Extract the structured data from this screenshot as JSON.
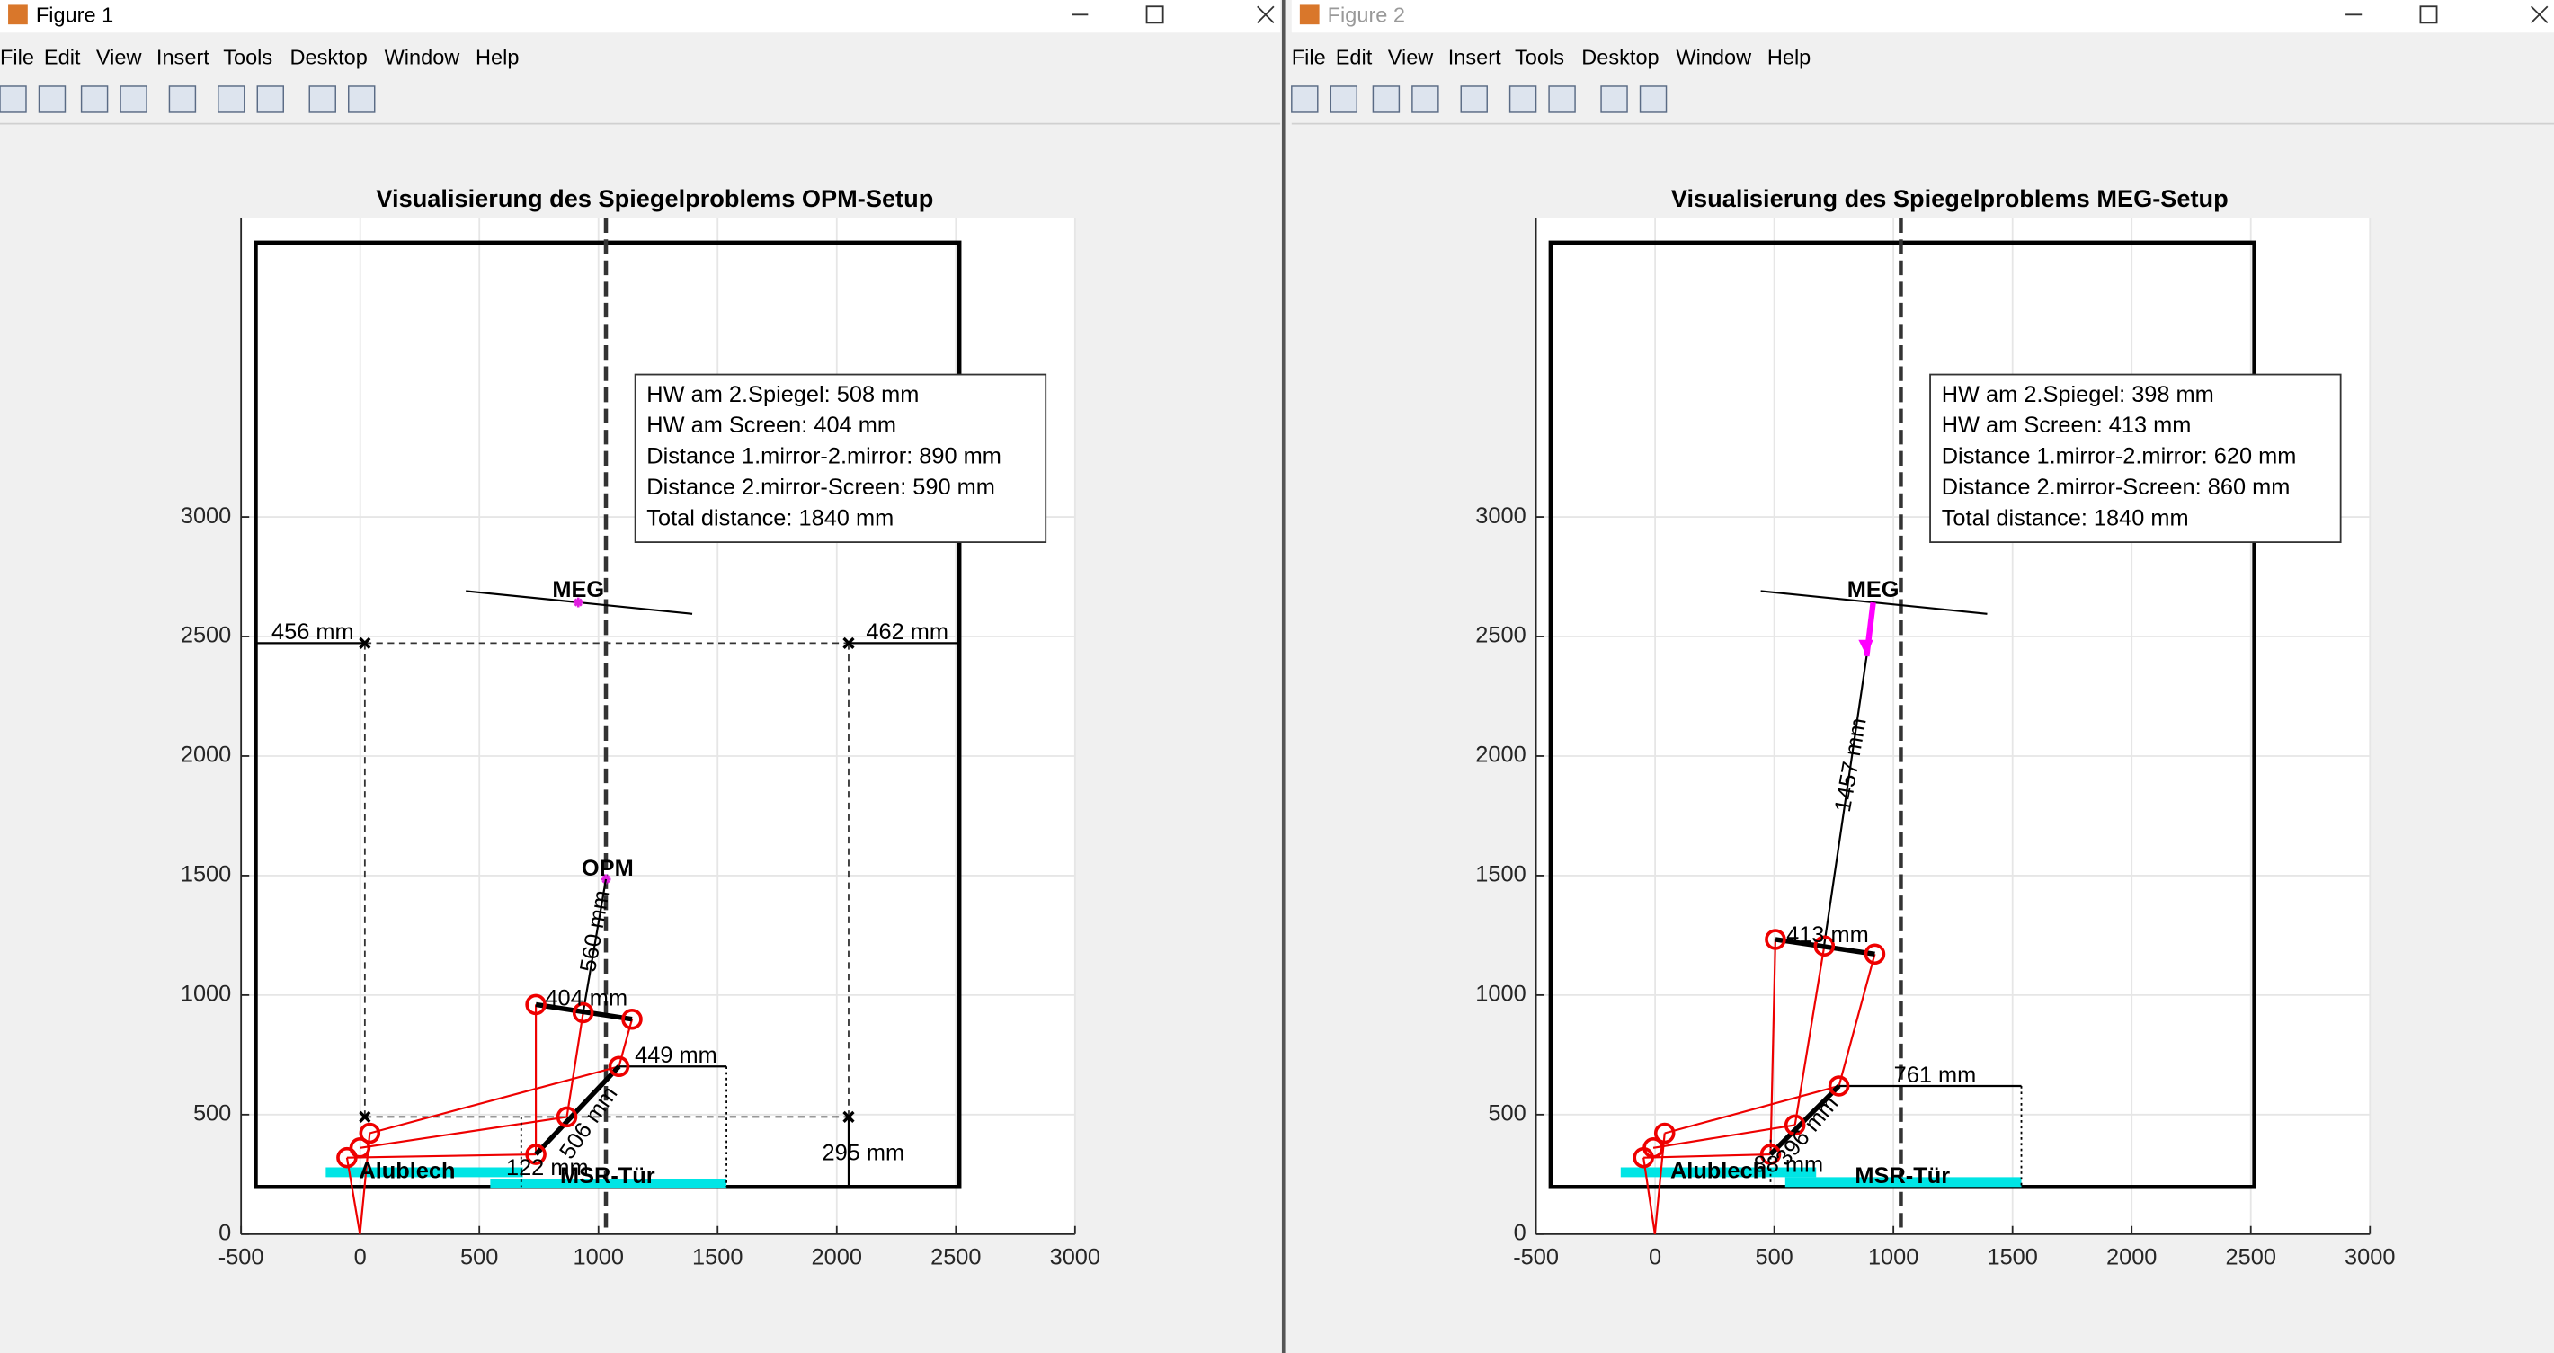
{
  "windows": [
    {
      "title": "Figure 1",
      "menu": [
        "File",
        "Edit",
        "View",
        "Insert",
        "Tools",
        "Desktop",
        "Window",
        "Help"
      ],
      "plot": {
        "title": "Visualisierung des Spiegelproblems OPM-Setup",
        "xlim": [
          -500,
          3000
        ],
        "ylim": [
          0,
          4250
        ],
        "xticks": [
          -500,
          0,
          500,
          1000,
          1500,
          2000,
          2500,
          3000
        ],
        "yticks": [
          0,
          500,
          1000,
          1500,
          2000,
          2500,
          3000
        ],
        "grid": true,
        "info_box": [
          "HW am 2.Spiegel: 508 mm",
          "HW am Screen: 404 mm",
          "Distance 1.mirror-2.mirror: 890 mm",
          "Distance 2.mirror-Screen: 590 mm",
          "Total distance: 1840 mm"
        ],
        "labels": [
          "456 mm",
          "462 mm",
          "MEG",
          "OPM",
          "560 mm",
          "404 mm",
          "449 mm",
          "506 mm",
          "122 mm",
          "Alublech",
          "MSR-Tür",
          "295 mm"
        ]
      }
    },
    {
      "title": "Figure 2",
      "menu": [
        "File",
        "Edit",
        "View",
        "Insert",
        "Tools",
        "Desktop",
        "Window",
        "Help"
      ],
      "plot": {
        "title": "Visualisierung des Spiegelproblems MEG-Setup",
        "xlim": [
          -500,
          3000
        ],
        "ylim": [
          0,
          4250
        ],
        "xticks": [
          -500,
          0,
          500,
          1000,
          1500,
          2000,
          2500,
          3000
        ],
        "yticks": [
          0,
          500,
          1000,
          1500,
          2000,
          2500,
          3000
        ],
        "grid": true,
        "info_box": [
          "HW am 2.Spiegel: 398 mm",
          "HW am Screen: 413 mm",
          "Distance 1.mirror-2.mirror: 620 mm",
          "Distance 2.mirror-Screen: 860 mm",
          "Total distance: 1840 mm"
        ],
        "labels": [
          "MEG",
          "1457 mm",
          "413 mm",
          "761 mm",
          "396 mm",
          "88 mm",
          "Alublech",
          "MSR-Tür"
        ]
      }
    }
  ]
}
